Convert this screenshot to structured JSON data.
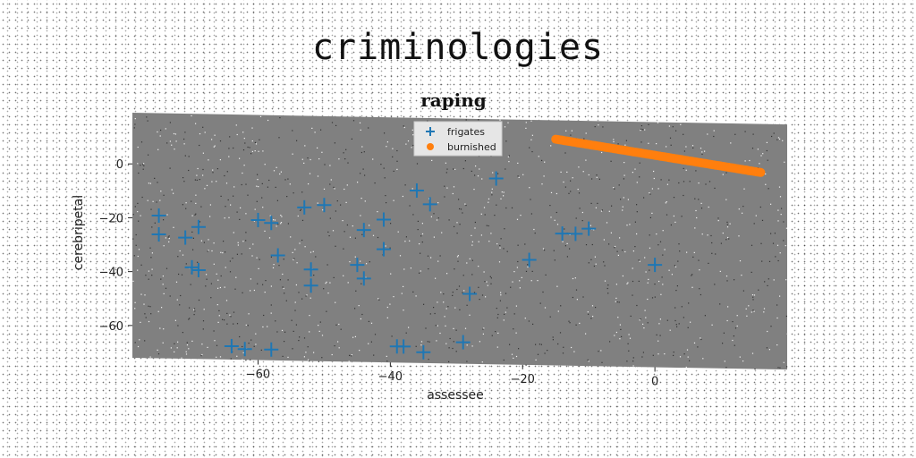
{
  "page": {
    "suptitle": "criminologies"
  },
  "chart_data": {
    "type": "scatter",
    "title": "raping",
    "xlabel": "assessee",
    "ylabel": "cerebripetal",
    "xlim": [
      -79,
      20
    ],
    "ylim": [
      -72,
      19
    ],
    "xticks": [
      -60,
      -40,
      -20,
      0
    ],
    "yticks": [
      -60,
      -40,
      -20,
      0
    ],
    "tick_labels_x": [
      "−60",
      "−40",
      "−20",
      "0"
    ],
    "tick_labels_y": [
      "−60",
      "−40",
      "−20",
      "0"
    ],
    "background": "#808080",
    "grid": false,
    "legend_position": "top-center",
    "series": [
      {
        "name": "frigates",
        "marker": "plus",
        "color": "#1f77b4",
        "points": [
          [
            -75,
            -19
          ],
          [
            -75,
            -26
          ],
          [
            -71,
            -27
          ],
          [
            -70,
            -38
          ],
          [
            -69,
            -39
          ],
          [
            -69,
            -23
          ],
          [
            -64,
            -67
          ],
          [
            -62,
            -68
          ],
          [
            -60,
            -20
          ],
          [
            -58,
            -21
          ],
          [
            -58,
            -68
          ],
          [
            -57,
            -33
          ],
          [
            -53,
            -15
          ],
          [
            -52,
            -38
          ],
          [
            -52,
            -44
          ],
          [
            -50,
            -14
          ],
          [
            -45,
            -36
          ],
          [
            -44,
            -23
          ],
          [
            -44,
            -41
          ],
          [
            -41,
            -19
          ],
          [
            -41,
            -30
          ],
          [
            -39,
            -66
          ],
          [
            -38,
            -66
          ],
          [
            -36,
            -8
          ],
          [
            -35,
            -68
          ],
          [
            -34,
            -13
          ],
          [
            -29,
            -64
          ],
          [
            -28,
            -46
          ],
          [
            -24,
            -3
          ],
          [
            -19,
            -33
          ],
          [
            -14,
            -23
          ],
          [
            -12,
            -23
          ],
          [
            -10,
            -21
          ],
          [
            0,
            -34
          ]
        ]
      },
      {
        "name": "burnished",
        "marker": "circle",
        "color": "#ff7f0e",
        "line": {
          "x_start": -15,
          "y_start": 12,
          "x_end": 16,
          "y_end": 1,
          "n": 120
        }
      }
    ]
  }
}
